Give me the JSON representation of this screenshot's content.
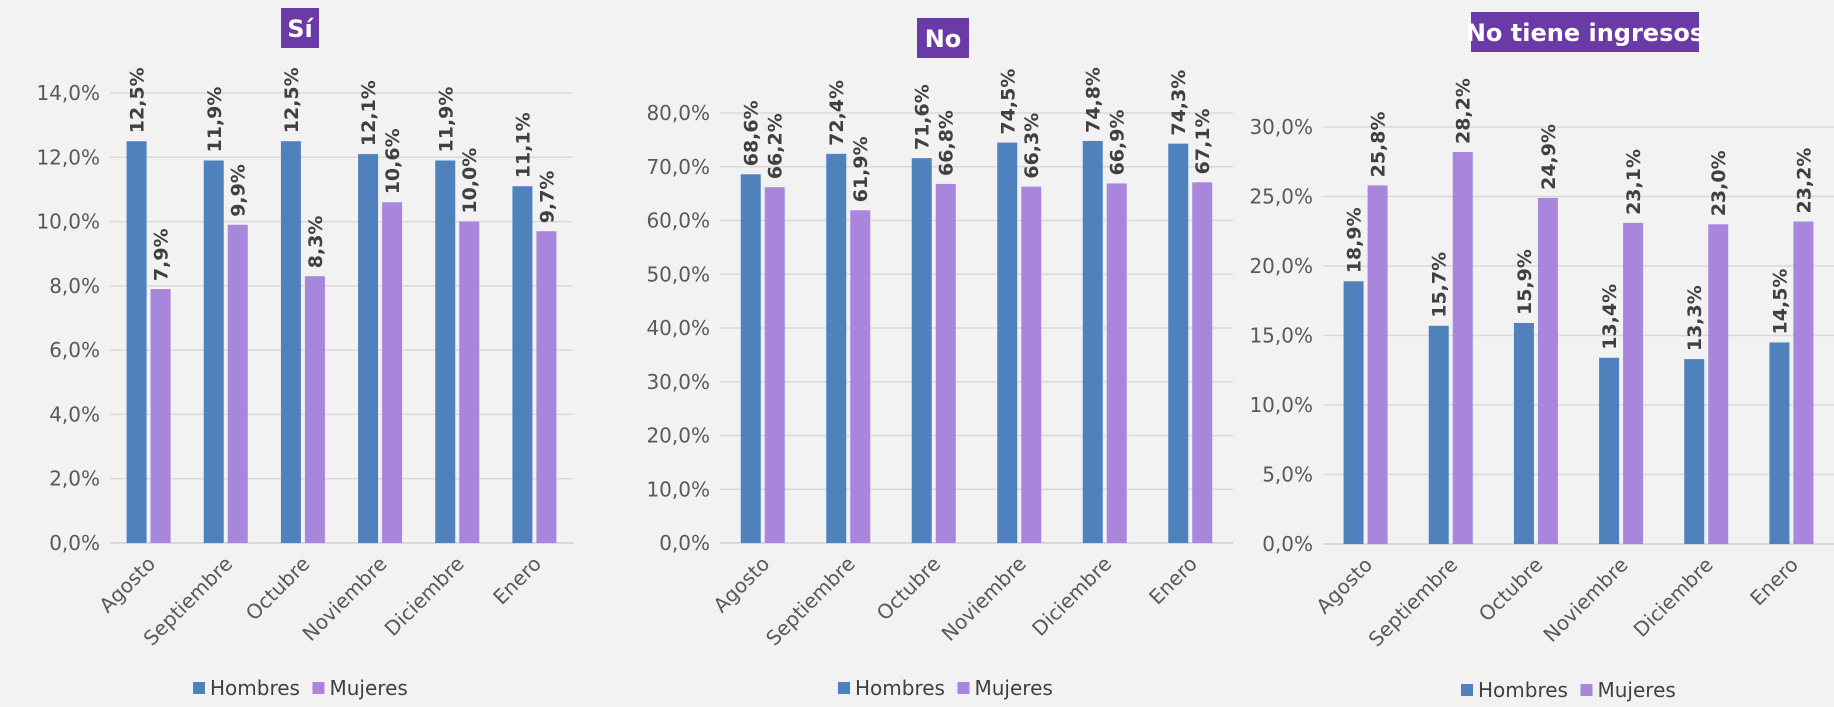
{
  "colors": {
    "background": "#f2f2f2",
    "hombres": "#4f81bd",
    "mujeres": "#a886dc",
    "title_bg": "#6a3aa6"
  },
  "chart_data": [
    {
      "type": "bar",
      "title": "Sí",
      "categories": [
        "Agosto",
        "Septiembre",
        "Octubre",
        "Noviembre",
        "Diciembre",
        "Enero"
      ],
      "series": [
        {
          "name": "Hombres",
          "values": [
            12.5,
            11.9,
            12.5,
            12.1,
            11.9,
            11.1
          ],
          "labels": [
            "12,5%",
            "11,9%",
            "12,5%",
            "12,1%",
            "11,9%",
            "11,1%"
          ]
        },
        {
          "name": "Mujeres",
          "values": [
            7.9,
            9.9,
            8.3,
            10.6,
            10.0,
            9.7
          ],
          "labels": [
            "7,9%",
            "9,9%",
            "8,3%",
            "10,6%",
            "10,0%",
            "9,7%"
          ]
        }
      ],
      "ylim": [
        0,
        14
      ],
      "yticks": [
        "0,0%",
        "2,0%",
        "4,0%",
        "6,0%",
        "8,0%",
        "10,0%",
        "12,0%",
        "14,0%"
      ],
      "grid": true,
      "legend_position": "bottom"
    },
    {
      "type": "bar",
      "title": "No",
      "categories": [
        "Agosto",
        "Septiembre",
        "Octubre",
        "Noviembre",
        "Diciembre",
        "Enero"
      ],
      "series": [
        {
          "name": "Hombres",
          "values": [
            68.6,
            72.4,
            71.6,
            74.5,
            74.8,
            74.3
          ],
          "labels": [
            "68,6%",
            "72,4%",
            "71,6%",
            "74,5%",
            "74,8%",
            "74,3%"
          ]
        },
        {
          "name": "Mujeres",
          "values": [
            66.2,
            61.9,
            66.8,
            66.3,
            66.9,
            67.1
          ],
          "labels": [
            "66,2%",
            "61,9%",
            "66,8%",
            "66,3%",
            "66,9%",
            "67,1%"
          ]
        }
      ],
      "ylim": [
        0,
        80
      ],
      "yticks": [
        "0,0%",
        "10,0%",
        "20,0%",
        "30,0%",
        "40,0%",
        "50,0%",
        "60,0%",
        "70,0%",
        "80,0%"
      ],
      "grid": true,
      "legend_position": "bottom"
    },
    {
      "type": "bar",
      "title": "No tiene ingresos",
      "categories": [
        "Agosto",
        "Septiembre",
        "Octubre",
        "Noviembre",
        "Diciembre",
        "Enero"
      ],
      "series": [
        {
          "name": "Hombres",
          "values": [
            18.9,
            15.7,
            15.9,
            13.4,
            13.3,
            14.5
          ],
          "labels": [
            "18,9%",
            "15,7%",
            "15,9%",
            "13,4%",
            "13,3%",
            "14,5%"
          ]
        },
        {
          "name": "Mujeres",
          "values": [
            25.8,
            28.2,
            24.9,
            23.1,
            23.0,
            23.2
          ],
          "labels": [
            "25,8%",
            "28,2%",
            "24,9%",
            "23,1%",
            "23,0%",
            "23,2%"
          ]
        }
      ],
      "ylim": [
        0,
        30
      ],
      "yticks": [
        "0,0%",
        "5,0%",
        "10,0%",
        "15,0%",
        "20,0%",
        "25,0%",
        "30,0%"
      ],
      "grid": true,
      "legend_position": "bottom"
    }
  ]
}
